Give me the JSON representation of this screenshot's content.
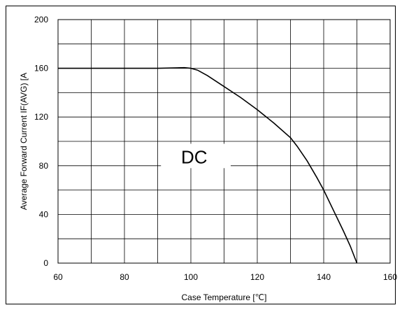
{
  "chart_data": {
    "type": "line",
    "title": "",
    "xlabel": "Case Temperature [℃]",
    "ylabel": "Average Forward Current IF(AVG) [A",
    "xlim": [
      60,
      160
    ],
    "ylim": [
      0,
      200
    ],
    "x_ticks": [
      "60",
      "80",
      "100",
      "120",
      "140",
      "160"
    ],
    "y_ticks": [
      "0",
      "40",
      "80",
      "120",
      "160",
      "200"
    ],
    "grid": true,
    "grid_step_x": 10,
    "grid_step_y": 20,
    "annotation": {
      "text": "DC",
      "x": 101,
      "y": 87
    },
    "series": [
      {
        "name": "",
        "color": "#000000",
        "x": [
          60,
          70,
          80,
          90,
          95,
          98,
          100,
          102,
          105,
          110,
          115,
          120,
          125,
          130,
          132,
          135,
          138,
          140,
          143,
          146,
          148,
          150
        ],
        "y": [
          160,
          160,
          160,
          160,
          160.3,
          160.5,
          160,
          158.5,
          154,
          145,
          136,
          126,
          115,
          103,
          96,
          84,
          70,
          60,
          43,
          26,
          14,
          0
        ]
      }
    ]
  }
}
